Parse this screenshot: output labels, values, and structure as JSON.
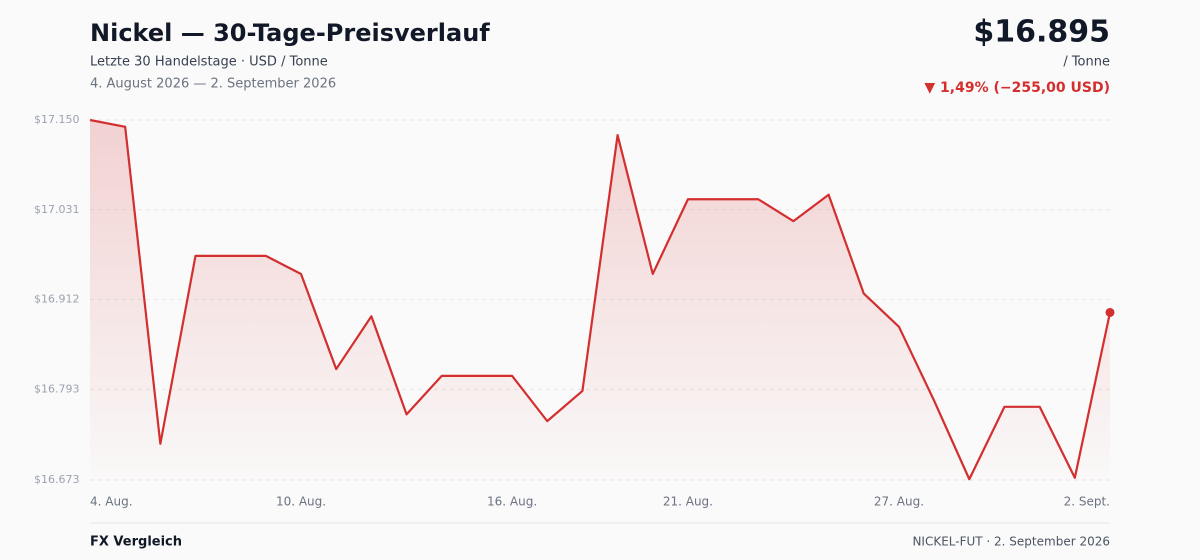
{
  "chart_data": {
    "type": "line",
    "title": "Nickel — 30-Tage-Preisverlauf",
    "subtitle": "Letzte 30 Handelstage · USD / Tonne",
    "date_range": "4. August 2026 — 2. September 2026",
    "price": "$16.895",
    "unit": "/ Tonne",
    "change": "▼ 1,49% (−255,00 USD)",
    "footer_left": "FX Vergleich",
    "footer_right": "NICKEL-FUT · 2. September 2026",
    "color": "#d32f2f",
    "grid": true,
    "categories": [
      "4. Aug.",
      null,
      null,
      null,
      null,
      null,
      "10. Aug.",
      null,
      null,
      null,
      null,
      null,
      "16. Aug.",
      null,
      null,
      null,
      null,
      "21. Aug.",
      null,
      null,
      null,
      null,
      null,
      "27. Aug.",
      null,
      null,
      null,
      null,
      null,
      "2. Sept."
    ],
    "values": [
      17150,
      17141,
      16721,
      16970,
      16970,
      16970,
      16946,
      16820,
      16890,
      16760,
      16811,
      16811,
      16811,
      16751,
      16791,
      17130,
      16946,
      17045,
      17045,
      17045,
      17016,
      17051,
      16920,
      16876,
      16778,
      16674,
      16770,
      16770,
      16676,
      16895
    ],
    "ylim": [
      16673,
      17150
    ],
    "yticks": [
      {
        "value": 16673,
        "label": "$16.673"
      },
      {
        "value": 16793,
        "label": "$16.793"
      },
      {
        "value": 16912,
        "label": "$16.912"
      },
      {
        "value": 17031,
        "label": "$17.031"
      },
      {
        "value": 17150,
        "label": "$17.150"
      }
    ]
  }
}
